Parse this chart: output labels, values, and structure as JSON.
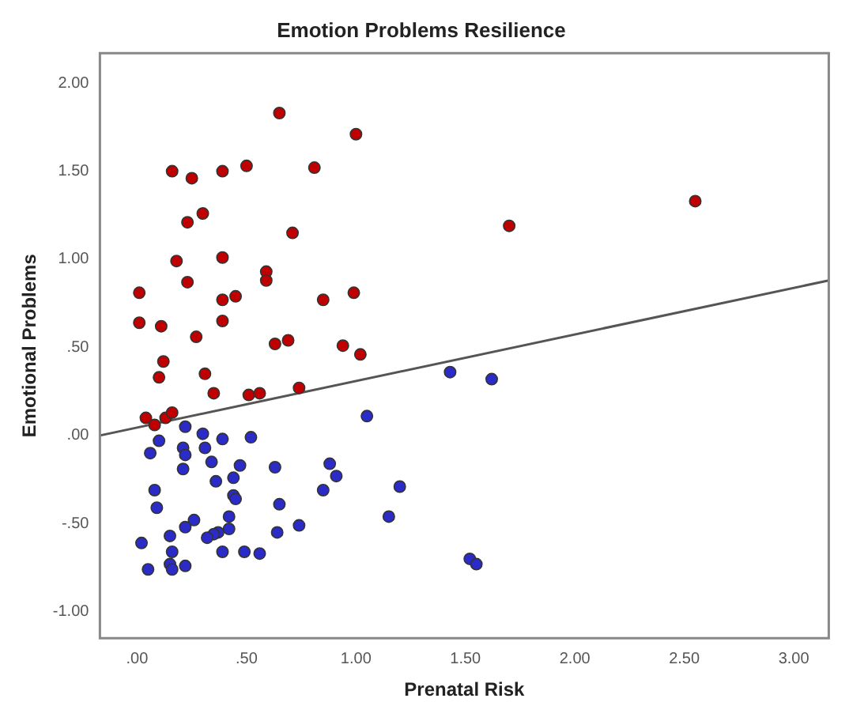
{
  "chart_data": {
    "type": "scatter",
    "title": "Emotion Problems Resilience",
    "xlabel": "Prenatal Risk",
    "ylabel": "Emotional Problems",
    "xlim": [
      -0.17,
      3.16
    ],
    "ylim": [
      -1.15,
      2.17
    ],
    "xticks": [
      {
        "value": 0,
        "label": ".00"
      },
      {
        "value": 0.5,
        "label": ".50"
      },
      {
        "value": 1,
        "label": "1.00"
      },
      {
        "value": 1.5,
        "label": "1.50"
      },
      {
        "value": 2,
        "label": "2.00"
      },
      {
        "value": 2.5,
        "label": "2.50"
      },
      {
        "value": 3,
        "label": "3.00"
      }
    ],
    "yticks": [
      {
        "value": -1,
        "label": "-1.00"
      },
      {
        "value": -0.5,
        "label": "-.50"
      },
      {
        "value": 0,
        "label": ".00"
      },
      {
        "value": 0.5,
        "label": ".50"
      },
      {
        "value": 1,
        "label": "1.00"
      },
      {
        "value": 1.5,
        "label": "1.50"
      },
      {
        "value": 2,
        "label": "2.00"
      }
    ],
    "grid": false,
    "legend": false,
    "marker": "circle",
    "series": [
      {
        "type": "scatter",
        "color": "#c00000",
        "x": [
          0.65,
          1.0,
          0.16,
          0.25,
          0.39,
          0.5,
          0.81,
          0.3,
          0.23,
          0.71,
          0.18,
          0.39,
          0.59,
          0.59,
          0.23,
          0.01,
          0.39,
          0.45,
          0.85,
          0.99,
          0.01,
          0.11,
          0.39,
          0.27,
          0.63,
          0.69,
          0.94,
          1.02,
          0.12,
          0.1,
          0.31,
          0.35,
          0.51,
          0.56,
          0.74,
          0.04,
          0.08,
          0.13,
          0.16,
          1.7,
          2.55
        ],
        "values": [
          1.83,
          1.71,
          1.5,
          1.46,
          1.5,
          1.53,
          1.52,
          1.26,
          1.21,
          1.15,
          0.99,
          1.01,
          0.93,
          0.88,
          0.87,
          0.81,
          0.77,
          0.79,
          0.77,
          0.81,
          0.64,
          0.62,
          0.65,
          0.56,
          0.52,
          0.54,
          0.51,
          0.46,
          0.42,
          0.33,
          0.35,
          0.24,
          0.23,
          0.24,
          0.27,
          0.1,
          0.06,
          0.1,
          0.13,
          1.19,
          1.33
        ]
      },
      {
        "type": "scatter",
        "color": "#2b2bc8",
        "x": [
          0.22,
          0.1,
          0.06,
          0.3,
          0.39,
          0.52,
          0.21,
          0.22,
          0.31,
          0.21,
          0.34,
          0.47,
          0.63,
          0.88,
          0.91,
          0.44,
          0.36,
          0.08,
          0.85,
          0.44,
          0.45,
          0.09,
          0.65,
          0.42,
          0.26,
          0.22,
          0.42,
          0.37,
          0.35,
          0.32,
          0.15,
          0.64,
          0.74,
          0.02,
          0.16,
          0.39,
          0.49,
          0.56,
          0.05,
          0.15,
          0.16,
          0.22,
          1.15,
          1.05,
          1.2,
          1.43,
          1.62,
          1.52,
          1.55
        ],
        "values": [
          0.05,
          -0.03,
          -0.1,
          0.01,
          -0.02,
          -0.01,
          -0.07,
          -0.11,
          -0.07,
          -0.19,
          -0.15,
          -0.17,
          -0.18,
          -0.16,
          -0.23,
          -0.24,
          -0.26,
          -0.31,
          -0.31,
          -0.34,
          -0.36,
          -0.41,
          -0.39,
          -0.46,
          -0.48,
          -0.52,
          -0.53,
          -0.55,
          -0.56,
          -0.58,
          -0.57,
          -0.55,
          -0.51,
          -0.61,
          -0.66,
          -0.66,
          -0.66,
          -0.67,
          -0.76,
          -0.73,
          -0.76,
          -0.74,
          -0.46,
          0.11,
          -0.29,
          0.36,
          0.32,
          -0.7,
          -0.73
        ]
      },
      {
        "type": "line",
        "color": "#555555",
        "marker": "none",
        "x": [
          -0.17,
          3.16
        ],
        "values": [
          0.0,
          0.88
        ]
      }
    ]
  }
}
